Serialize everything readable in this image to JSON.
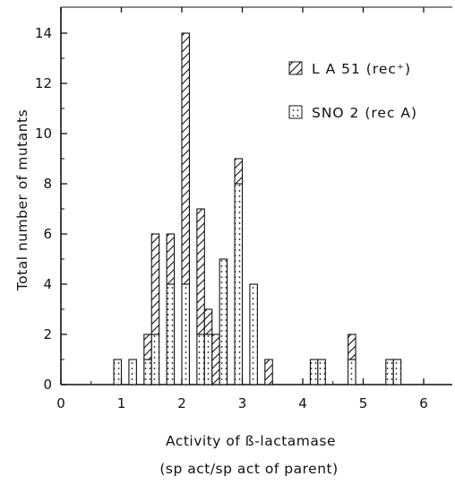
{
  "chart_data": {
    "type": "bar",
    "xlabel": "Activity of ß-lactamase",
    "xlabel_line2": "(sp act/sp act of parent)",
    "ylabel": "Total number of mutants",
    "xlim": [
      0,
      6.5
    ],
    "ylim": [
      0,
      14.5
    ],
    "x_ticks": [
      "0",
      "1",
      "2",
      "3",
      "4",
      "5",
      "6"
    ],
    "y_ticks": [
      "0",
      "2",
      "4",
      "6",
      "8",
      "10",
      "12",
      "14"
    ],
    "bin_width": 0.125,
    "legend": [
      {
        "label": "L A 51 (rec⁺)",
        "pattern": "hatch"
      },
      {
        "label": "SNO 2 (rec A)",
        "pattern": "dots"
      }
    ],
    "series": [
      {
        "name": "L A 51 (rec⁺)",
        "pattern": "hatch",
        "bin_start": [
          1.375,
          1.5,
          1.75,
          2.0,
          2.25,
          2.375,
          2.5,
          2.875,
          3.375,
          4.75
        ],
        "values": [
          1,
          4,
          2,
          10,
          5,
          1,
          2,
          1,
          1,
          1
        ]
      },
      {
        "name": "SNO 2 (rec A)",
        "pattern": "dots",
        "bin_start": [
          0.875,
          1.125,
          1.375,
          1.5,
          1.75,
          2.0,
          2.25,
          2.375,
          2.625,
          2.875,
          3.125,
          4.125,
          4.25,
          4.75,
          5.375,
          5.5
        ],
        "values": [
          1,
          1,
          1,
          2,
          4,
          4,
          2,
          2,
          5,
          8,
          4,
          1,
          1,
          1,
          1,
          1
        ]
      }
    ]
  }
}
